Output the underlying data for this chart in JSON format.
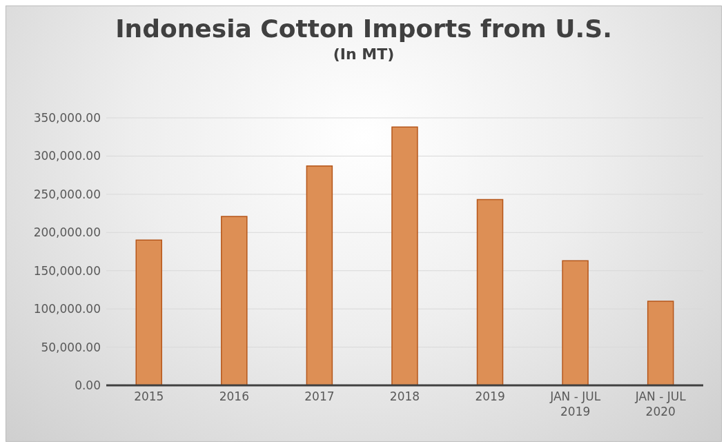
{
  "chart_data": {
    "type": "bar",
    "title": "Indonesia Cotton Imports from U.S.",
    "subtitle": "(In MT)",
    "categories": [
      "2015",
      "2016",
      "2017",
      "2018",
      "2019",
      "JAN - JUL 2019",
      "JAN - JUL 2020"
    ],
    "values": [
      190000,
      221000,
      287000,
      338000,
      243000,
      163000,
      110000
    ],
    "color": "#dd8f55",
    "ylim": [
      0,
      350000
    ],
    "yticks": [
      {
        "value": 0,
        "label": "0.00"
      },
      {
        "value": 50000,
        "label": "50,000.00"
      },
      {
        "value": 100000,
        "label": "100,000.00"
      },
      {
        "value": 150000,
        "label": "150,000.00"
      },
      {
        "value": 200000,
        "label": "200,000.00"
      },
      {
        "value": 250000,
        "label": "250,000.00"
      },
      {
        "value": 300000,
        "label": "300,000.00"
      },
      {
        "value": 350000,
        "label": "350,000.00"
      }
    ],
    "grid": "y"
  }
}
